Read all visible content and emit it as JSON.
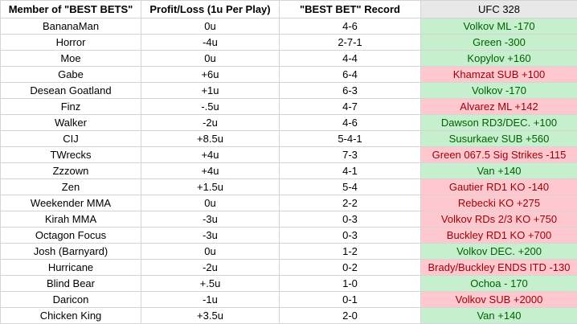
{
  "table": {
    "headers": [
      "Member of \"BEST BETS\"",
      "Profit/Loss (1u Per Play)",
      "\"BEST BET\" Record",
      "UFC 328"
    ],
    "rows": [
      [
        "BananaMan",
        "0u",
        "4-6",
        "Volkov ML -170"
      ],
      [
        "Horror",
        "-4u",
        "2-7-1",
        "Green -300"
      ],
      [
        "Moe",
        "0u",
        "4-4",
        "Kopylov +160"
      ],
      [
        "Gabe",
        "+6u",
        "6-4",
        "Khamzat SUB +100"
      ],
      [
        "Desean Goatland",
        "+1u",
        "6-3",
        "Volkov -170"
      ],
      [
        "Finz",
        "-.5u",
        "4-7",
        "Alvarez ML +142"
      ],
      [
        "Walker",
        "-2u",
        "4-6",
        "Dawson RD3/DEC. +100"
      ],
      [
        "CIJ",
        "+8.5u",
        "5-4-1",
        "Susurkaev SUB +560"
      ],
      [
        "TWrecks",
        "+4u",
        "7-3",
        "Green 067.5 Sig Strikes -115"
      ],
      [
        "Zzzown",
        "+4u",
        "4-1",
        "Van +140"
      ],
      [
        "Zen",
        "+1.5u",
        "5-4",
        "Gautier RD1 KO -140"
      ],
      [
        "Weekender MMA",
        "0u",
        "2-2",
        "Rebecki KO +275"
      ],
      [
        "Kirah MMA",
        "-3u",
        "0-3",
        "Volkov RDs 2/3 KO +750"
      ],
      [
        "Octagon Focus",
        "-3u",
        "0-3",
        "Buckley RD1 KO +700"
      ],
      [
        "Josh (Barnyard)",
        "0u",
        "1-2",
        "Volkov DEC. +200"
      ],
      [
        "Hurricane",
        "-2u",
        "0-2",
        "Brady/Buckley ENDS ITD -130"
      ],
      [
        "Blind Bear",
        "+.5u",
        "1-0",
        "Ochoa - 170"
      ],
      [
        "Daricon",
        "-1u",
        "0-1",
        "Volkov SUB +2000"
      ],
      [
        "Chicken King",
        "+3.5u",
        "2-0",
        "Van +140"
      ]
    ],
    "pick_fills": [
      "green",
      "green",
      "green",
      "red",
      "green",
      "red",
      "green",
      "green",
      "red",
      "green",
      "red",
      "red",
      "red",
      "red",
      "green",
      "red",
      "green",
      "red",
      "green"
    ]
  }
}
